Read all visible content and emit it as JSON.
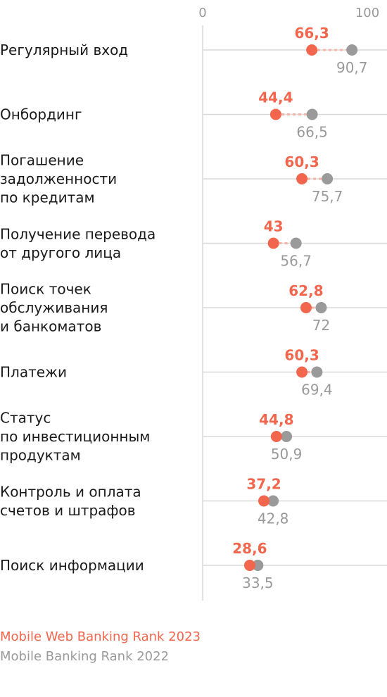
{
  "chart_data": {
    "type": "dumbbell",
    "xlim": [
      0,
      100
    ],
    "x_ticks": [
      "0",
      "100"
    ],
    "colors": {
      "rank2023": "#f2664d",
      "rank2022": "#9a9a9a",
      "grid": "#d9d9d9",
      "connector": "#f7b3a6"
    },
    "series": [
      {
        "name": "Mobile Web Banking Rank 2023"
      },
      {
        "name": "Mobile Banking Rank 2022"
      }
    ],
    "rows": [
      {
        "label": [
          "Регулярный вход"
        ],
        "v2023": 66.3,
        "v2022": 90.7,
        "t2023": "66,3",
        "t2022": "90,7"
      },
      {
        "label": [
          "Онбординг"
        ],
        "v2023": 44.4,
        "v2022": 66.5,
        "t2023": "44,4",
        "t2022": "66,5"
      },
      {
        "label": [
          "Погашение",
          "задолженности",
          "по кредитам"
        ],
        "v2023": 60.3,
        "v2022": 75.7,
        "t2023": "60,3",
        "t2022": "75,7"
      },
      {
        "label": [
          "Получение перевода",
          "от другого лица"
        ],
        "v2023": 43,
        "v2022": 56.7,
        "t2023": "43",
        "t2022": "56,7"
      },
      {
        "label": [
          "Поиск точек",
          "обслуживания",
          "и банкоматов"
        ],
        "v2023": 62.8,
        "v2022": 72,
        "t2023": "62,8",
        "t2022": "72"
      },
      {
        "label": [
          "Платежи"
        ],
        "v2023": 60.3,
        "v2022": 69.4,
        "t2023": "60,3",
        "t2022": "69,4"
      },
      {
        "label": [
          "Статус",
          "по инвестиционным",
          "продуктам"
        ],
        "v2023": 44.8,
        "v2022": 50.9,
        "t2023": "44,8",
        "t2022": "50,9"
      },
      {
        "label": [
          "Контроль и оплата",
          "счетов и штрафов"
        ],
        "v2023": 37.2,
        "v2022": 42.8,
        "t2023": "37,2",
        "t2022": "42,8"
      },
      {
        "label": [
          "Поиск информации"
        ],
        "v2023": 28.6,
        "v2022": 33.5,
        "t2023": "28,6",
        "t2022": "33,5"
      }
    ]
  }
}
